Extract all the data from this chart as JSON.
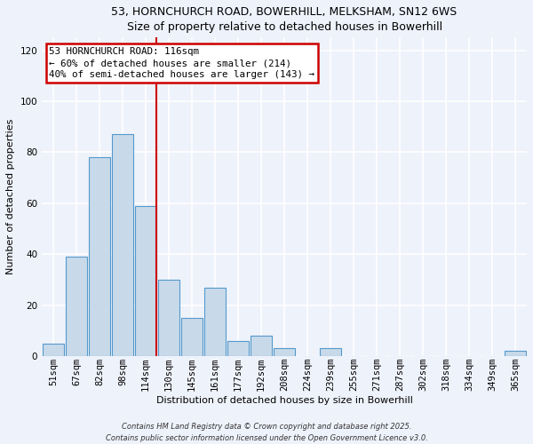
{
  "title1": "53, HORNCHURCH ROAD, BOWERHILL, MELKSHAM, SN12 6WS",
  "title2": "Size of property relative to detached houses in Bowerhill",
  "xlabel": "Distribution of detached houses by size in Bowerhill",
  "ylabel": "Number of detached properties",
  "bar_labels": [
    "51sqm",
    "67sqm",
    "82sqm",
    "98sqm",
    "114sqm",
    "130sqm",
    "145sqm",
    "161sqm",
    "177sqm",
    "192sqm",
    "208sqm",
    "224sqm",
    "239sqm",
    "255sqm",
    "271sqm",
    "287sqm",
    "302sqm",
    "318sqm",
    "334sqm",
    "349sqm",
    "365sqm"
  ],
  "bar_values": [
    5,
    39,
    78,
    87,
    59,
    30,
    15,
    27,
    6,
    8,
    3,
    0,
    3,
    0,
    0,
    0,
    0,
    0,
    0,
    0,
    2
  ],
  "bar_color": "#c8daea",
  "bar_edge_color": "#5599cc",
  "vline_color": "#cc0000",
  "annotation_title": "53 HORNCHURCH ROAD: 116sqm",
  "annotation_line2": "← 60% of detached houses are smaller (214)",
  "annotation_line3": "40% of semi-detached houses are larger (143) →",
  "annotation_box_edge_color": "#cc0000",
  "ylim": [
    0,
    125
  ],
  "yticks": [
    0,
    20,
    40,
    60,
    80,
    100,
    120
  ],
  "footer1": "Contains HM Land Registry data © Crown copyright and database right 2025.",
  "footer2": "Contains public sector information licensed under the Open Government Licence v3.0.",
  "bg_color": "#eef2fb",
  "plot_bg_color": "#eef2fb",
  "title_fontsize": 9,
  "axis_label_fontsize": 8,
  "tick_fontsize": 7.5,
  "footer_fontsize": 6
}
